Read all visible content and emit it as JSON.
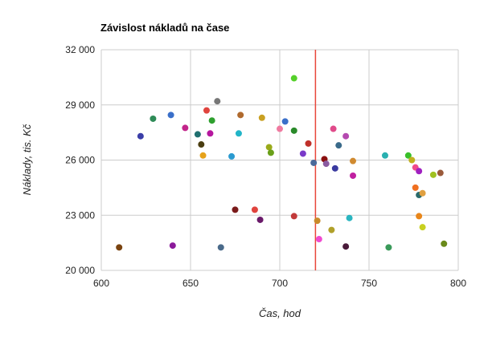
{
  "chart_data": {
    "type": "scatter",
    "title": "Závislost nákladů na čase",
    "xlabel": "Čas, hod",
    "ylabel": "Náklady, tis. Kč",
    "xlim": [
      600,
      800
    ],
    "ylim": [
      20000,
      32000
    ],
    "x_ticks": [
      "600",
      "650",
      "700",
      "750",
      "800"
    ],
    "y_ticks": [
      "20 000",
      "23 000",
      "26 000",
      "29 000",
      "32 000"
    ],
    "grid": true,
    "reference_line": {
      "x": 720,
      "color": "#e8463a"
    },
    "points": [
      {
        "x": 610,
        "y": 21250,
        "color": "#7a4310"
      },
      {
        "x": 622,
        "y": 27300,
        "color": "#3b3ea8"
      },
      {
        "x": 629,
        "y": 28250,
        "color": "#2e8b57"
      },
      {
        "x": 639,
        "y": 28450,
        "color": "#3a6fc9"
      },
      {
        "x": 640,
        "y": 21350,
        "color": "#8b1a9a"
      },
      {
        "x": 647,
        "y": 27750,
        "color": "#c2258a"
      },
      {
        "x": 654,
        "y": 27400,
        "color": "#1f6f6f"
      },
      {
        "x": 656,
        "y": 26850,
        "color": "#4a3d10"
      },
      {
        "x": 657,
        "y": 26250,
        "color": "#e6a21a"
      },
      {
        "x": 659,
        "y": 28700,
        "color": "#e0443e"
      },
      {
        "x": 661,
        "y": 27450,
        "color": "#b5179e"
      },
      {
        "x": 662,
        "y": 28150,
        "color": "#2ea02e"
      },
      {
        "x": 665,
        "y": 29200,
        "color": "#777777"
      },
      {
        "x": 667,
        "y": 21250,
        "color": "#4a6a8a"
      },
      {
        "x": 673,
        "y": 26200,
        "color": "#2a9ad0"
      },
      {
        "x": 675,
        "y": 23300,
        "color": "#7a1a1a"
      },
      {
        "x": 677,
        "y": 27450,
        "color": "#22b5c8"
      },
      {
        "x": 678,
        "y": 28450,
        "color": "#b06a2e"
      },
      {
        "x": 686,
        "y": 23300,
        "color": "#e0443e"
      },
      {
        "x": 689,
        "y": 22750,
        "color": "#6a1a6a"
      },
      {
        "x": 690,
        "y": 28300,
        "color": "#c9a022"
      },
      {
        "x": 694,
        "y": 26700,
        "color": "#9aaa1a"
      },
      {
        "x": 695,
        "y": 26400,
        "color": "#6aa01a"
      },
      {
        "x": 700,
        "y": 27700,
        "color": "#f07aa0"
      },
      {
        "x": 703,
        "y": 28100,
        "color": "#3a6fc9"
      },
      {
        "x": 708,
        "y": 30450,
        "color": "#55d02a"
      },
      {
        "x": 708,
        "y": 27600,
        "color": "#2a8a2a"
      },
      {
        "x": 708,
        "y": 22950,
        "color": "#c23a3a"
      },
      {
        "x": 713,
        "y": 26350,
        "color": "#7a3ac9"
      },
      {
        "x": 716,
        "y": 26900,
        "color": "#c0302a"
      },
      {
        "x": 719,
        "y": 25850,
        "color": "#4a6a9a"
      },
      {
        "x": 721,
        "y": 22700,
        "color": "#c98a2a"
      },
      {
        "x": 722,
        "y": 21700,
        "color": "#f04ad0"
      },
      {
        "x": 725,
        "y": 26050,
        "color": "#8a1010"
      },
      {
        "x": 726,
        "y": 25800,
        "color": "#8a5aa0"
      },
      {
        "x": 729,
        "y": 22200,
        "color": "#b0a02a"
      },
      {
        "x": 730,
        "y": 27700,
        "color": "#e04a8a"
      },
      {
        "x": 731,
        "y": 25550,
        "color": "#3a3aa0"
      },
      {
        "x": 733,
        "y": 26800,
        "color": "#3a6a8a"
      },
      {
        "x": 737,
        "y": 27300,
        "color": "#b54ab0"
      },
      {
        "x": 737,
        "y": 21300,
        "color": "#4a1a3a"
      },
      {
        "x": 739,
        "y": 22850,
        "color": "#2ab5c0"
      },
      {
        "x": 741,
        "y": 25950,
        "color": "#d08a30"
      },
      {
        "x": 741,
        "y": 25150,
        "color": "#c020a0"
      },
      {
        "x": 759,
        "y": 26250,
        "color": "#2ab0b0"
      },
      {
        "x": 761,
        "y": 21250,
        "color": "#3a9a5a"
      },
      {
        "x": 772,
        "y": 26250,
        "color": "#3ac02a"
      },
      {
        "x": 774,
        "y": 26000,
        "color": "#c0b020"
      },
      {
        "x": 776,
        "y": 25600,
        "color": "#f04a8a"
      },
      {
        "x": 776,
        "y": 24500,
        "color": "#f07020"
      },
      {
        "x": 778,
        "y": 25400,
        "color": "#a020c0"
      },
      {
        "x": 778,
        "y": 24100,
        "color": "#2a6a6a"
      },
      {
        "x": 778,
        "y": 22950,
        "color": "#e8861a"
      },
      {
        "x": 780,
        "y": 24200,
        "color": "#e0a040"
      },
      {
        "x": 780,
        "y": 22350,
        "color": "#c8d020"
      },
      {
        "x": 786,
        "y": 25200,
        "color": "#a0c020"
      },
      {
        "x": 790,
        "y": 25300,
        "color": "#9a5a3a"
      },
      {
        "x": 792,
        "y": 21450,
        "color": "#6a8a1a"
      }
    ]
  }
}
